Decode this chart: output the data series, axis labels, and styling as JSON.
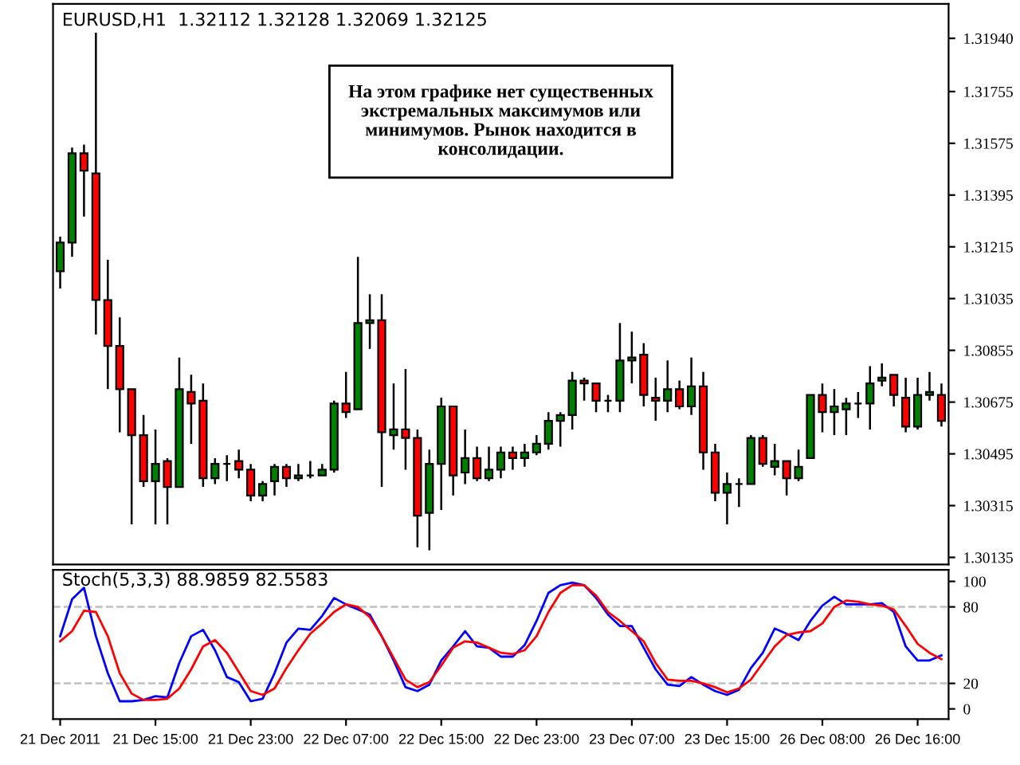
{
  "chart_data": [
    {
      "type": "candlestick",
      "title": "EURUSD,H1  1.32112 1.32128 1.32069 1.32125",
      "annotations": [
        "На этом графике нет существенных\nэкстремальных максимумов или\nминимумов. Рынок находится в\nконсолидации."
      ],
      "ohlc": [
        [
          1.3113,
          1.3125,
          1.3107,
          1.3123
        ],
        [
          1.3123,
          1.3156,
          1.3118,
          1.3154
        ],
        [
          1.3154,
          1.3157,
          1.3132,
          1.3148
        ],
        [
          1.3147,
          1.3196,
          1.3091,
          1.3103
        ],
        [
          1.3103,
          1.3117,
          1.3072,
          1.3087
        ],
        [
          1.3087,
          1.3097,
          1.3057,
          1.3072
        ],
        [
          1.3072,
          1.3072,
          1.3025,
          1.3056
        ],
        [
          1.3056,
          1.3063,
          1.3038,
          1.304
        ],
        [
          1.304,
          1.3058,
          1.3025,
          1.3046
        ],
        [
          1.3047,
          1.3048,
          1.3025,
          1.3038
        ],
        [
          1.3038,
          1.3083,
          1.3038,
          1.3072
        ],
        [
          1.3071,
          1.3077,
          1.3053,
          1.3067
        ],
        [
          1.3068,
          1.3074,
          1.3038,
          1.3041
        ],
        [
          1.3041,
          1.3048,
          1.3039,
          1.3046
        ],
        [
          1.3046,
          1.3049,
          1.304,
          1.3046
        ],
        [
          1.3047,
          1.3051,
          1.3041,
          1.3044
        ],
        [
          1.3044,
          1.3046,
          1.3033,
          1.3035
        ],
        [
          1.3035,
          1.304,
          1.3033,
          1.3039
        ],
        [
          1.304,
          1.3046,
          1.3035,
          1.3045
        ],
        [
          1.3045,
          1.3046,
          1.3038,
          1.3041
        ],
        [
          1.3041,
          1.3046,
          1.304,
          1.3042
        ],
        [
          1.3042,
          1.3047,
          1.3041,
          1.3042
        ],
        [
          1.3042,
          1.3046,
          1.3042,
          1.3044
        ],
        [
          1.3044,
          1.3068,
          1.3043,
          1.3067
        ],
        [
          1.3067,
          1.3078,
          1.3062,
          1.3064
        ],
        [
          1.3065,
          1.3118,
          1.3065,
          1.3095
        ],
        [
          1.3095,
          1.3105,
          1.3086,
          1.3096
        ],
        [
          1.3096,
          1.3105,
          1.3038,
          1.3057
        ],
        [
          1.3056,
          1.3074,
          1.3051,
          1.3058
        ],
        [
          1.3058,
          1.3079,
          1.3044,
          1.3055
        ],
        [
          1.3055,
          1.3058,
          1.3017,
          1.3028
        ],
        [
          1.3029,
          1.3051,
          1.3016,
          1.3046
        ],
        [
          1.3046,
          1.3069,
          1.303,
          1.3066
        ],
        [
          1.3066,
          1.3066,
          1.3035,
          1.3042
        ],
        [
          1.3043,
          1.3058,
          1.3039,
          1.3048
        ],
        [
          1.3048,
          1.3052,
          1.304,
          1.3041
        ],
        [
          1.3041,
          1.3052,
          1.304,
          1.3044
        ],
        [
          1.3044,
          1.3052,
          1.3041,
          1.305
        ],
        [
          1.305,
          1.3052,
          1.3044,
          1.3048
        ],
        [
          1.3048,
          1.3053,
          1.3045,
          1.305
        ],
        [
          1.305,
          1.3056,
          1.3049,
          1.3053
        ],
        [
          1.3053,
          1.3064,
          1.3051,
          1.3061
        ],
        [
          1.3061,
          1.3064,
          1.3052,
          1.3063
        ],
        [
          1.3063,
          1.3078,
          1.3058,
          1.3075
        ],
        [
          1.3075,
          1.3076,
          1.3068,
          1.3074
        ],
        [
          1.3074,
          1.3074,
          1.3064,
          1.3068
        ],
        [
          1.3068,
          1.307,
          1.3064,
          1.3068
        ],
        [
          1.3068,
          1.3095,
          1.3064,
          1.3082
        ],
        [
          1.3082,
          1.3092,
          1.3074,
          1.3083
        ],
        [
          1.3084,
          1.3088,
          1.3066,
          1.307
        ],
        [
          1.3069,
          1.3076,
          1.3061,
          1.3068
        ],
        [
          1.3068,
          1.3082,
          1.3064,
          1.3072
        ],
        [
          1.3072,
          1.3075,
          1.3065,
          1.3066
        ],
        [
          1.3066,
          1.3083,
          1.3063,
          1.3073
        ],
        [
          1.3073,
          1.3078,
          1.3044,
          1.305
        ],
        [
          1.305,
          1.3053,
          1.3033,
          1.3036
        ],
        [
          1.3036,
          1.3043,
          1.3025,
          1.3039
        ],
        [
          1.3039,
          1.3041,
          1.3031,
          1.3039
        ],
        [
          1.3039,
          1.3056,
          1.3039,
          1.3055
        ],
        [
          1.3055,
          1.3056,
          1.3045,
          1.3046
        ],
        [
          1.3045,
          1.3053,
          1.3042,
          1.3047
        ],
        [
          1.3047,
          1.3047,
          1.3035,
          1.3041
        ],
        [
          1.3041,
          1.3051,
          1.304,
          1.3045
        ],
        [
          1.3048,
          1.307,
          1.3048,
          1.307
        ],
        [
          1.307,
          1.3074,
          1.3057,
          1.3064
        ],
        [
          1.3064,
          1.3072,
          1.3056,
          1.3066
        ],
        [
          1.3065,
          1.3069,
          1.3056,
          1.3067
        ],
        [
          1.3067,
          1.3071,
          1.3062,
          1.3067
        ],
        [
          1.3067,
          1.308,
          1.3058,
          1.3074
        ],
        [
          1.3075,
          1.3081,
          1.3073,
          1.3076
        ],
        [
          1.3077,
          1.3077,
          1.3066,
          1.307
        ],
        [
          1.3069,
          1.3076,
          1.3057,
          1.3059
        ],
        [
          1.3059,
          1.3076,
          1.3058,
          1.307
        ],
        [
          1.307,
          1.3078,
          1.3068,
          1.3071
        ],
        [
          1.307,
          1.3074,
          1.3059,
          1.3061
        ]
      ],
      "colors": [
        "#008000",
        "#008000",
        "#ff0000",
        "#ff0000",
        "#ff0000",
        "#ff0000",
        "#ff0000",
        "#ff0000",
        "#008000",
        "#ff0000",
        "#008000",
        "#ff0000",
        "#ff0000",
        "#008000",
        "#000000",
        "#ff0000",
        "#ff0000",
        "#008000",
        "#008000",
        "#ff0000",
        "#008000",
        "#000000",
        "#008000",
        "#008000",
        "#ff0000",
        "#008000",
        "#008000",
        "#ff0000",
        "#008000",
        "#ff0000",
        "#ff0000",
        "#008000",
        "#008000",
        "#ff0000",
        "#008000",
        "#ff0000",
        "#008000",
        "#008000",
        "#ff0000",
        "#008000",
        "#008000",
        "#008000",
        "#008000",
        "#008000",
        "#ff0000",
        "#ff0000",
        "#000000",
        "#008000",
        "#008000",
        "#ff0000",
        "#ff0000",
        "#008000",
        "#ff0000",
        "#008000",
        "#ff0000",
        "#ff0000",
        "#008000",
        "#000000",
        "#008000",
        "#ff0000",
        "#008000",
        "#ff0000",
        "#008000",
        "#008000",
        "#ff0000",
        "#008000",
        "#008000",
        "#000000",
        "#008000",
        "#008000",
        "#ff0000",
        "#ff0000",
        "#008000",
        "#008000",
        "#ff0000"
      ],
      "ylim": [
        1.3011,
        1.3206
      ],
      "yticks": [
        1.30135,
        1.30315,
        1.30495,
        1.30675,
        1.30855,
        1.31035,
        1.31215,
        1.31395,
        1.31575,
        1.31755,
        {
          "value": 1.3194,
          "label": "1.31940"
        }
      ],
      "grid": false,
      "legend": false
    },
    {
      "type": "line",
      "title": "Stoch(5,3,3) 88.9859 82.5583",
      "categories": [
        "21 Dec 2011",
        null,
        null,
        null,
        null,
        null,
        null,
        null,
        "21 Dec 15:00",
        null,
        null,
        null,
        null,
        null,
        null,
        null,
        "21 Dec 23:00",
        null,
        null,
        null,
        null,
        null,
        null,
        null,
        "22 Dec 07:00",
        null,
        null,
        null,
        null,
        null,
        null,
        null,
        "22 Dec 15:00",
        null,
        null,
        null,
        null,
        null,
        null,
        null,
        "22 Dec 23:00",
        null,
        null,
        null,
        null,
        null,
        null,
        null,
        "23 Dec 07:00",
        null,
        null,
        null,
        null,
        null,
        null,
        null,
        "23 Dec 15:00",
        null,
        null,
        null,
        null,
        null,
        null,
        null,
        "26 Dec 08:00",
        null,
        null,
        null,
        null,
        null,
        null,
        null,
        "26 Dec 16:00",
        null,
        null
      ],
      "series": [
        {
          "color": "#0000ff",
          "values": [
            57,
            86,
            95,
            57,
            28,
            6,
            6,
            7,
            10,
            9,
            36,
            57,
            62,
            46,
            25,
            21,
            6,
            8,
            28,
            52,
            63,
            62,
            73,
            87,
            82,
            78,
            74,
            57,
            38,
            17,
            14,
            19,
            38,
            49,
            61,
            49,
            48,
            41,
            41,
            50,
            69,
            91,
            97,
            99,
            97,
            87,
            74,
            65,
            65,
            48,
            31,
            19,
            18,
            25,
            19,
            14,
            11,
            15,
            32,
            44,
            63,
            59,
            54,
            69,
            81,
            88,
            82,
            82,
            82,
            83,
            76,
            49,
            38,
            38,
            42
          ]
        },
        {
          "color": "#ff0000",
          "values": [
            53,
            61,
            77,
            76,
            57,
            28,
            12,
            7,
            7,
            8,
            16,
            31,
            49,
            54,
            44,
            29,
            14,
            11,
            16,
            32,
            46,
            59,
            67,
            76,
            82,
            80,
            72,
            57,
            40,
            23,
            17,
            21,
            34,
            48,
            53,
            52,
            48,
            44,
            43,
            46,
            57,
            76,
            91,
            97,
            97,
            89,
            76,
            69,
            61,
            53,
            36,
            23,
            22,
            22,
            20,
            17,
            13,
            16,
            23,
            36,
            49,
            58,
            60,
            61,
            67,
            80,
            85,
            84,
            82,
            81,
            78,
            65,
            51,
            44,
            39
          ]
        }
      ],
      "ylim": [
        -8,
        109
      ],
      "yticks": [
        0,
        20,
        80,
        100
      ],
      "ref_lines": [
        {
          "axis": "y",
          "value": 80,
          "color": "#c0c0c0",
          "line_style": "dashed"
        },
        {
          "axis": "y",
          "value": 20,
          "color": "#c0c0c0",
          "line_style": "dashed"
        }
      ],
      "marker": "none",
      "line_style": "solid",
      "grid": false,
      "legend": false
    }
  ]
}
